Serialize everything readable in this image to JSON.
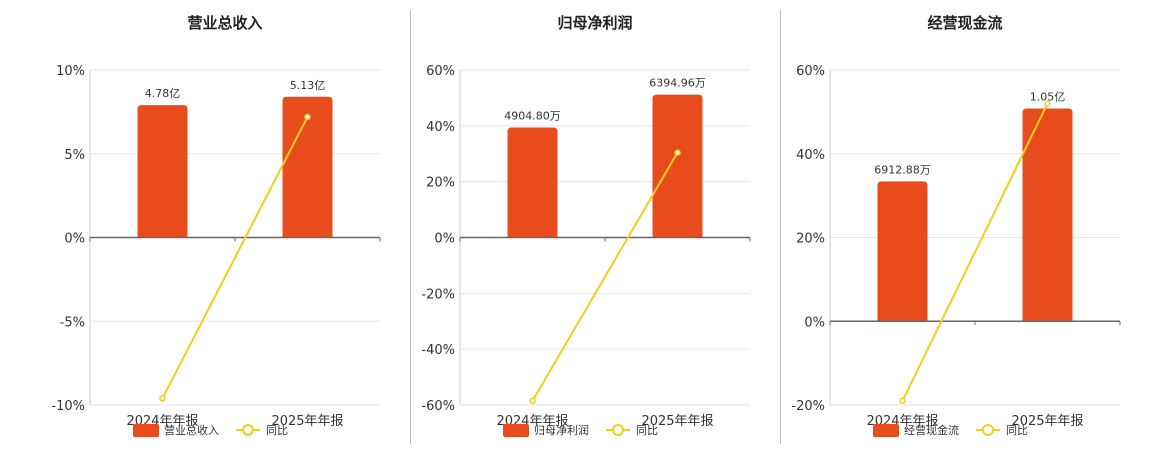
{
  "colors": {
    "bar": "#E84C1C",
    "line": "#F2CE1B",
    "grid": "#e6e6e6",
    "axis": "#666666"
  },
  "chart_data": [
    {
      "type": "bar",
      "title": "营业总收入",
      "categories": [
        "2024年年报",
        "2025年年报"
      ],
      "ylim": [
        -10,
        10
      ],
      "yticks": [
        10,
        5,
        0,
        -5,
        -10
      ],
      "ytick_labels": [
        "10%",
        "5%",
        "0%",
        "-5%",
        "-10%"
      ],
      "series": [
        {
          "name": "营业总收入",
          "kind": "bar",
          "values": [
            7.9,
            8.4
          ],
          "labels": [
            "4.78亿",
            "5.13亿"
          ]
        },
        {
          "name": "同比",
          "kind": "line",
          "values": [
            -9.6,
            7.2
          ]
        }
      ],
      "legend": "bottom-center",
      "grid": true
    },
    {
      "type": "bar",
      "title": "归母净利润",
      "categories": [
        "2024年年报",
        "2025年年报"
      ],
      "ylim": [
        -60,
        60
      ],
      "yticks": [
        60,
        40,
        20,
        0,
        -20,
        -40,
        -60
      ],
      "ytick_labels": [
        "60%",
        "40%",
        "20%",
        "0%",
        "-20%",
        "-40%",
        "-60%"
      ],
      "series": [
        {
          "name": "归母净利润",
          "kind": "bar",
          "values": [
            39.4,
            51.2
          ],
          "labels": [
            "4904.80万",
            "6394.96万"
          ]
        },
        {
          "name": "同比",
          "kind": "line",
          "values": [
            -58.5,
            30.4
          ]
        }
      ],
      "legend": "bottom-center",
      "grid": true
    },
    {
      "type": "bar",
      "title": "经营现金流",
      "categories": [
        "2024年年报",
        "2025年年报"
      ],
      "ylim": [
        -20,
        60
      ],
      "yticks": [
        60,
        40,
        20,
        0,
        -20
      ],
      "ytick_labels": [
        "60%",
        "40%",
        "20%",
        "0%",
        "-20%"
      ],
      "series": [
        {
          "name": "经营现金流",
          "kind": "bar",
          "values": [
            33.4,
            50.8
          ],
          "labels": [
            "6912.88万",
            "1.05亿"
          ]
        },
        {
          "name": "同比",
          "kind": "line",
          "values": [
            -19.0,
            52.0
          ]
        }
      ],
      "legend": "bottom-center",
      "grid": true
    }
  ]
}
